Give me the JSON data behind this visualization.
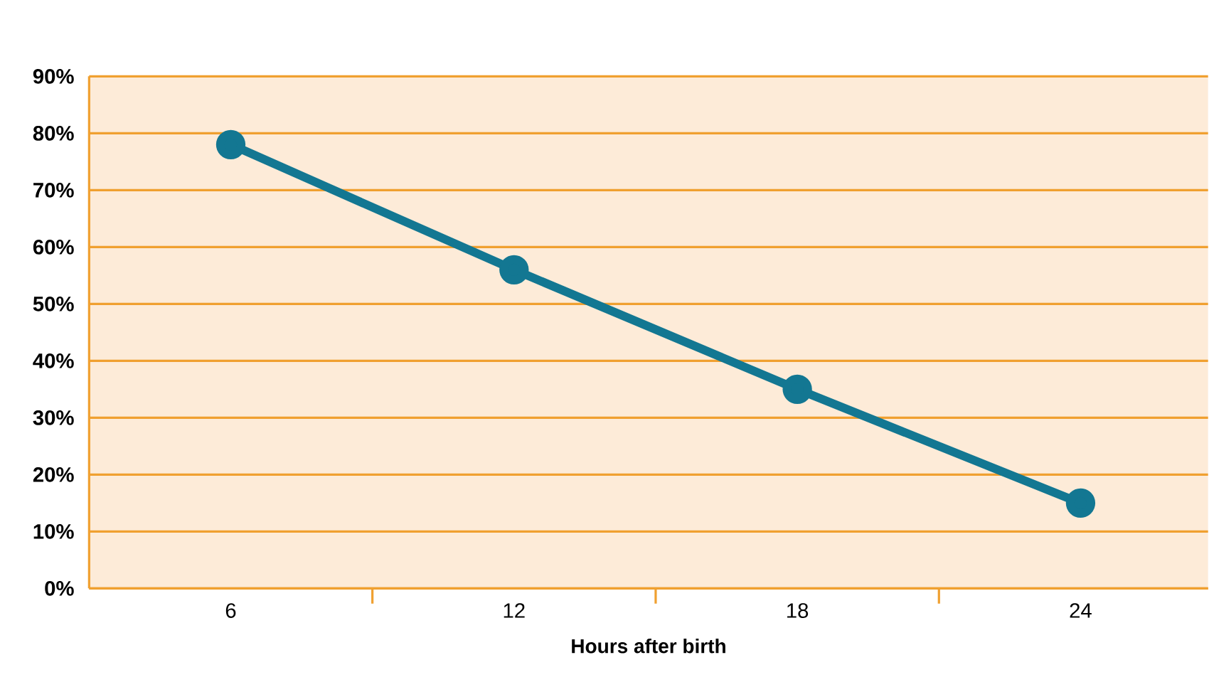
{
  "chart_data": {
    "type": "line",
    "xlabel": "Hours after birth",
    "categories": [
      "6",
      "12",
      "18",
      "24"
    ],
    "series": [
      {
        "color": "#137792",
        "values": [
          78,
          56,
          35,
          15
        ]
      }
    ],
    "ylim": [
      0,
      90
    ],
    "yticks": [
      {
        "value": 0,
        "label": "0%"
      },
      {
        "value": 10,
        "label": "10%"
      },
      {
        "value": 20,
        "label": "20%"
      },
      {
        "value": 30,
        "label": "30%"
      },
      {
        "value": 40,
        "label": "40%"
      },
      {
        "value": 50,
        "label": "50%"
      },
      {
        "value": 60,
        "label": "60%"
      },
      {
        "value": 70,
        "label": "70%"
      },
      {
        "value": 80,
        "label": "80%"
      },
      {
        "value": 90,
        "label": "90%"
      }
    ],
    "grid": "y",
    "marker": "circle",
    "line_style": "solid"
  }
}
